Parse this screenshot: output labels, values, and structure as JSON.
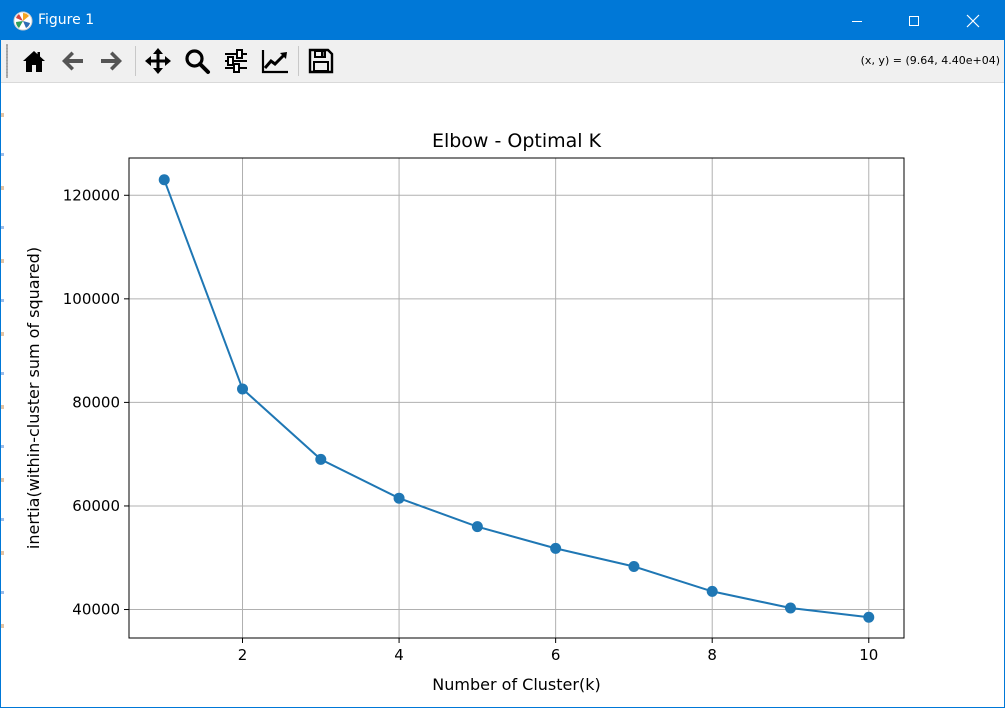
{
  "window": {
    "title": "Figure 1",
    "controls": [
      "minimize",
      "maximize",
      "close"
    ]
  },
  "toolbar": {
    "buttons": [
      {
        "name": "home",
        "icon": "home-icon"
      },
      {
        "name": "back",
        "icon": "back-arrow-icon"
      },
      {
        "name": "forward",
        "icon": "forward-arrow-icon"
      },
      {
        "name": "pan",
        "icon": "move-icon"
      },
      {
        "name": "zoom",
        "icon": "search-icon"
      },
      {
        "name": "configure-subplots",
        "icon": "sliders-icon"
      },
      {
        "name": "edit-axis",
        "icon": "line-chart-icon"
      },
      {
        "name": "save",
        "icon": "floppy-disk-icon"
      }
    ],
    "coords_readout": "(x, y) = (9.64, 4.40e+04)"
  },
  "colors": {
    "titlebar": "#0078d7",
    "series": "#1f77b4",
    "grid": "#b0b0b0"
  },
  "chart_data": {
    "type": "line",
    "title": "Elbow - Optimal K",
    "xlabel": "Number of Cluster(k)",
    "ylabel": "inertia(within-cluster sum of squared)",
    "x": [
      1,
      2,
      3,
      4,
      5,
      6,
      7,
      8,
      9,
      10
    ],
    "y": [
      123000,
      82600,
      69000,
      61500,
      56000,
      51800,
      48300,
      43500,
      40300,
      38500
    ],
    "xlim": [
      0.55,
      10.45
    ],
    "ylim": [
      34500,
      127200
    ],
    "xticks": [
      2,
      4,
      6,
      8,
      10
    ],
    "yticks": [
      40000,
      60000,
      80000,
      100000,
      120000
    ],
    "marker": "circle",
    "grid": true
  }
}
